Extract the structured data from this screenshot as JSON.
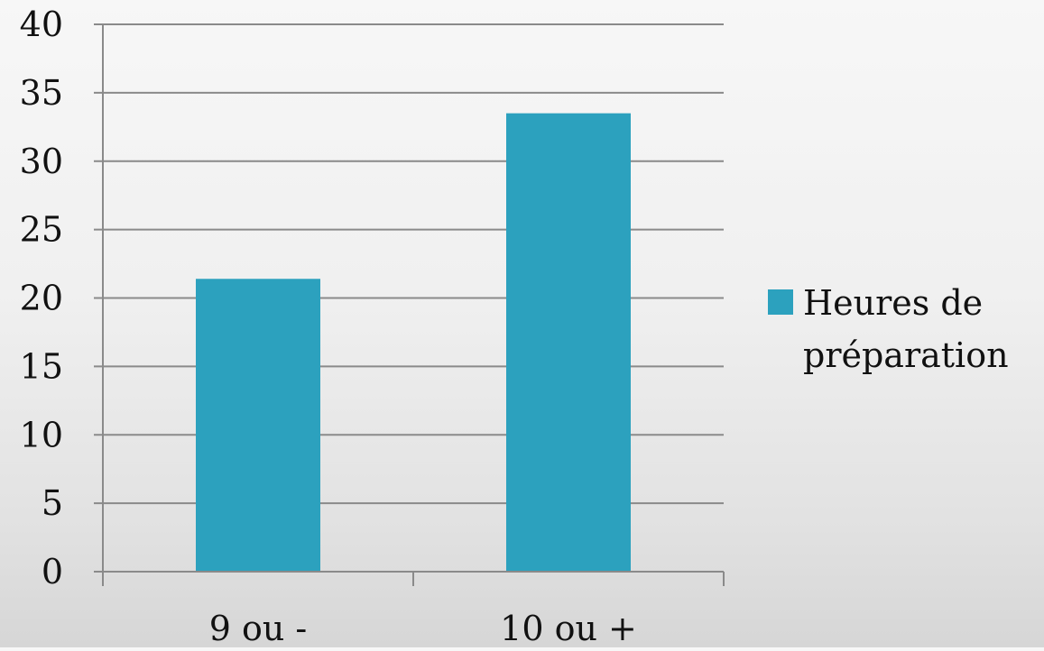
{
  "chart_data": {
    "type": "bar",
    "categories": [
      "9 ou -",
      "10 ou +"
    ],
    "series": [
      {
        "name": "Heures de préparation",
        "values": [
          21.4,
          33.5
        ],
        "color": "#2ca1be"
      }
    ],
    "ylim": [
      0,
      40
    ],
    "yticks": [
      "0",
      "5",
      "10",
      "15",
      "20",
      "25",
      "30",
      "35",
      "40"
    ],
    "grid": true,
    "legend": {
      "placement": "right",
      "lines": [
        "Heures de",
        "préparation"
      ]
    }
  }
}
